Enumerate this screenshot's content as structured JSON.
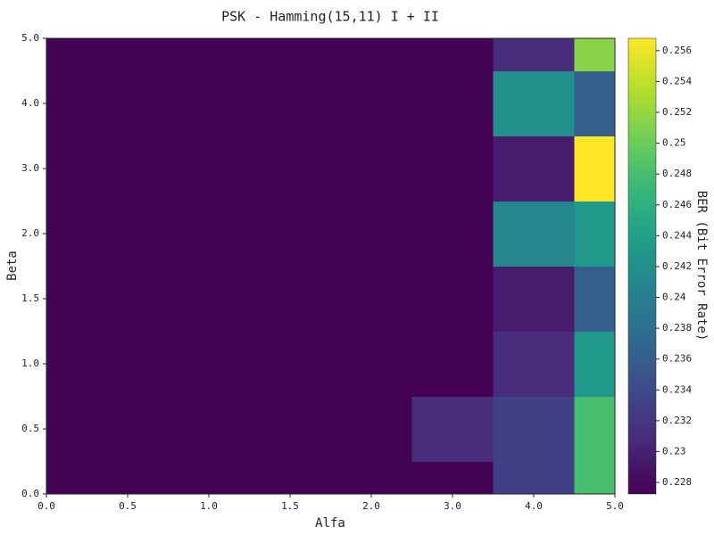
{
  "chart_data": {
    "type": "heatmap",
    "title": "PSK - Hamming(15,11) I + II",
    "x_label": "Alfa",
    "y_label": "Beta",
    "colorbar_label": "BER (Bit Error Rate)",
    "x_categories": [
      "0.0",
      "0.5",
      "1.0",
      "1.5",
      "2.0",
      "3.0",
      "4.0",
      "5.0"
    ],
    "y_categories": [
      "0.0",
      "0.5",
      "1.0",
      "1.5",
      "2.0",
      "3.0",
      "4.0",
      "5.0"
    ],
    "z": [
      [
        0.2273,
        0.2273,
        0.2273,
        0.2273,
        0.2273,
        0.2273,
        0.233,
        0.248
      ],
      [
        0.2273,
        0.2273,
        0.2273,
        0.2273,
        0.2273,
        0.231,
        0.233,
        0.248
      ],
      [
        0.2273,
        0.2273,
        0.2273,
        0.2273,
        0.2273,
        0.2273,
        0.231,
        0.243
      ],
      [
        0.2273,
        0.2273,
        0.2273,
        0.2273,
        0.2273,
        0.2273,
        0.2295,
        0.236
      ],
      [
        0.2273,
        0.2273,
        0.2273,
        0.2273,
        0.2273,
        0.2273,
        0.241,
        0.243
      ],
      [
        0.2273,
        0.2273,
        0.2273,
        0.2273,
        0.2273,
        0.2273,
        0.2295,
        0.2568
      ],
      [
        0.2273,
        0.2273,
        0.2273,
        0.2273,
        0.2273,
        0.2273,
        0.242,
        0.236
      ],
      [
        0.2273,
        0.2273,
        0.2273,
        0.2273,
        0.2273,
        0.2273,
        0.231,
        0.2515
      ]
    ],
    "colormap": "viridis",
    "zlim": [
      0.22725,
      0.2568
    ],
    "zticks": [
      0.228,
      0.23,
      0.232,
      0.234,
      0.236,
      0.238,
      0.24,
      0.242,
      0.244,
      0.246,
      0.248,
      0.25,
      0.252,
      0.254,
      0.256
    ]
  }
}
